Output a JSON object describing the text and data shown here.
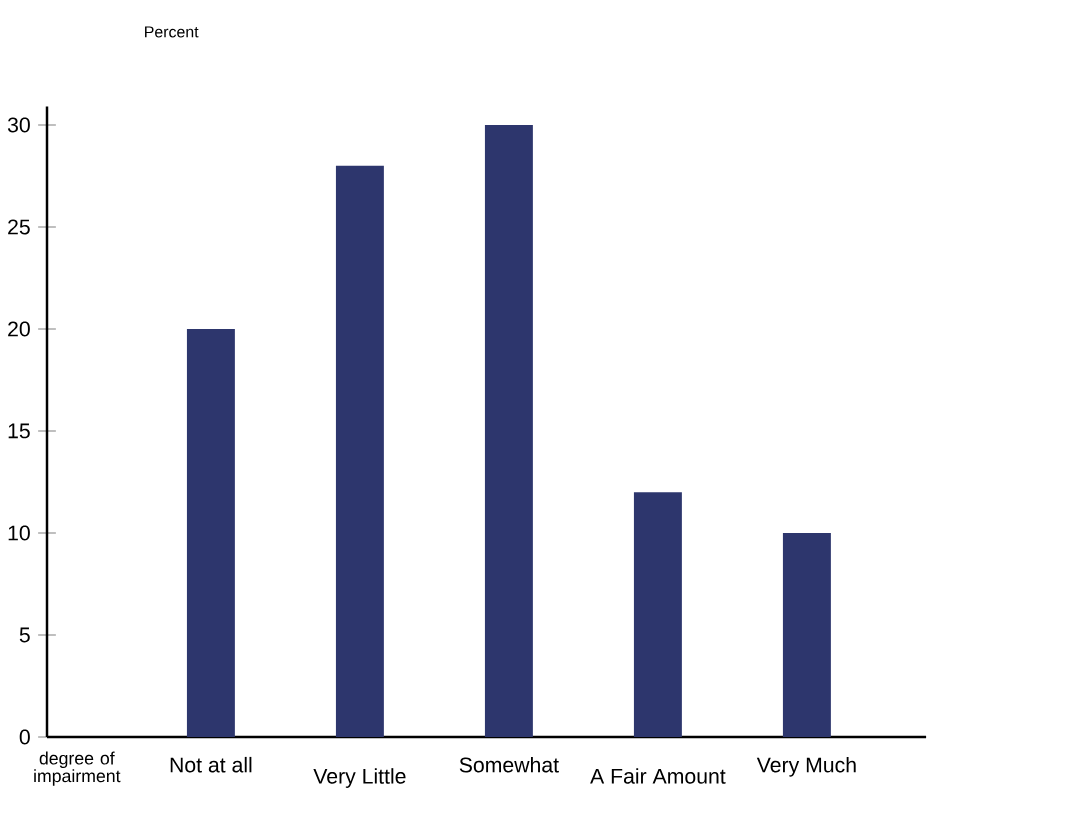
{
  "chart_data": {
    "type": "bar",
    "xlabel": "degree of impairment",
    "ylabel": "Percent",
    "categories": [
      "Not at all",
      "Very Little",
      "Somewhat",
      "A Fair Amount",
      "Very Much"
    ],
    "values": [
      20,
      28,
      30,
      12,
      10
    ],
    "color": "#2d366d",
    "ylim": [
      0,
      30.9
    ],
    "yticks": [
      0,
      5,
      10,
      15,
      20,
      25,
      30
    ]
  }
}
